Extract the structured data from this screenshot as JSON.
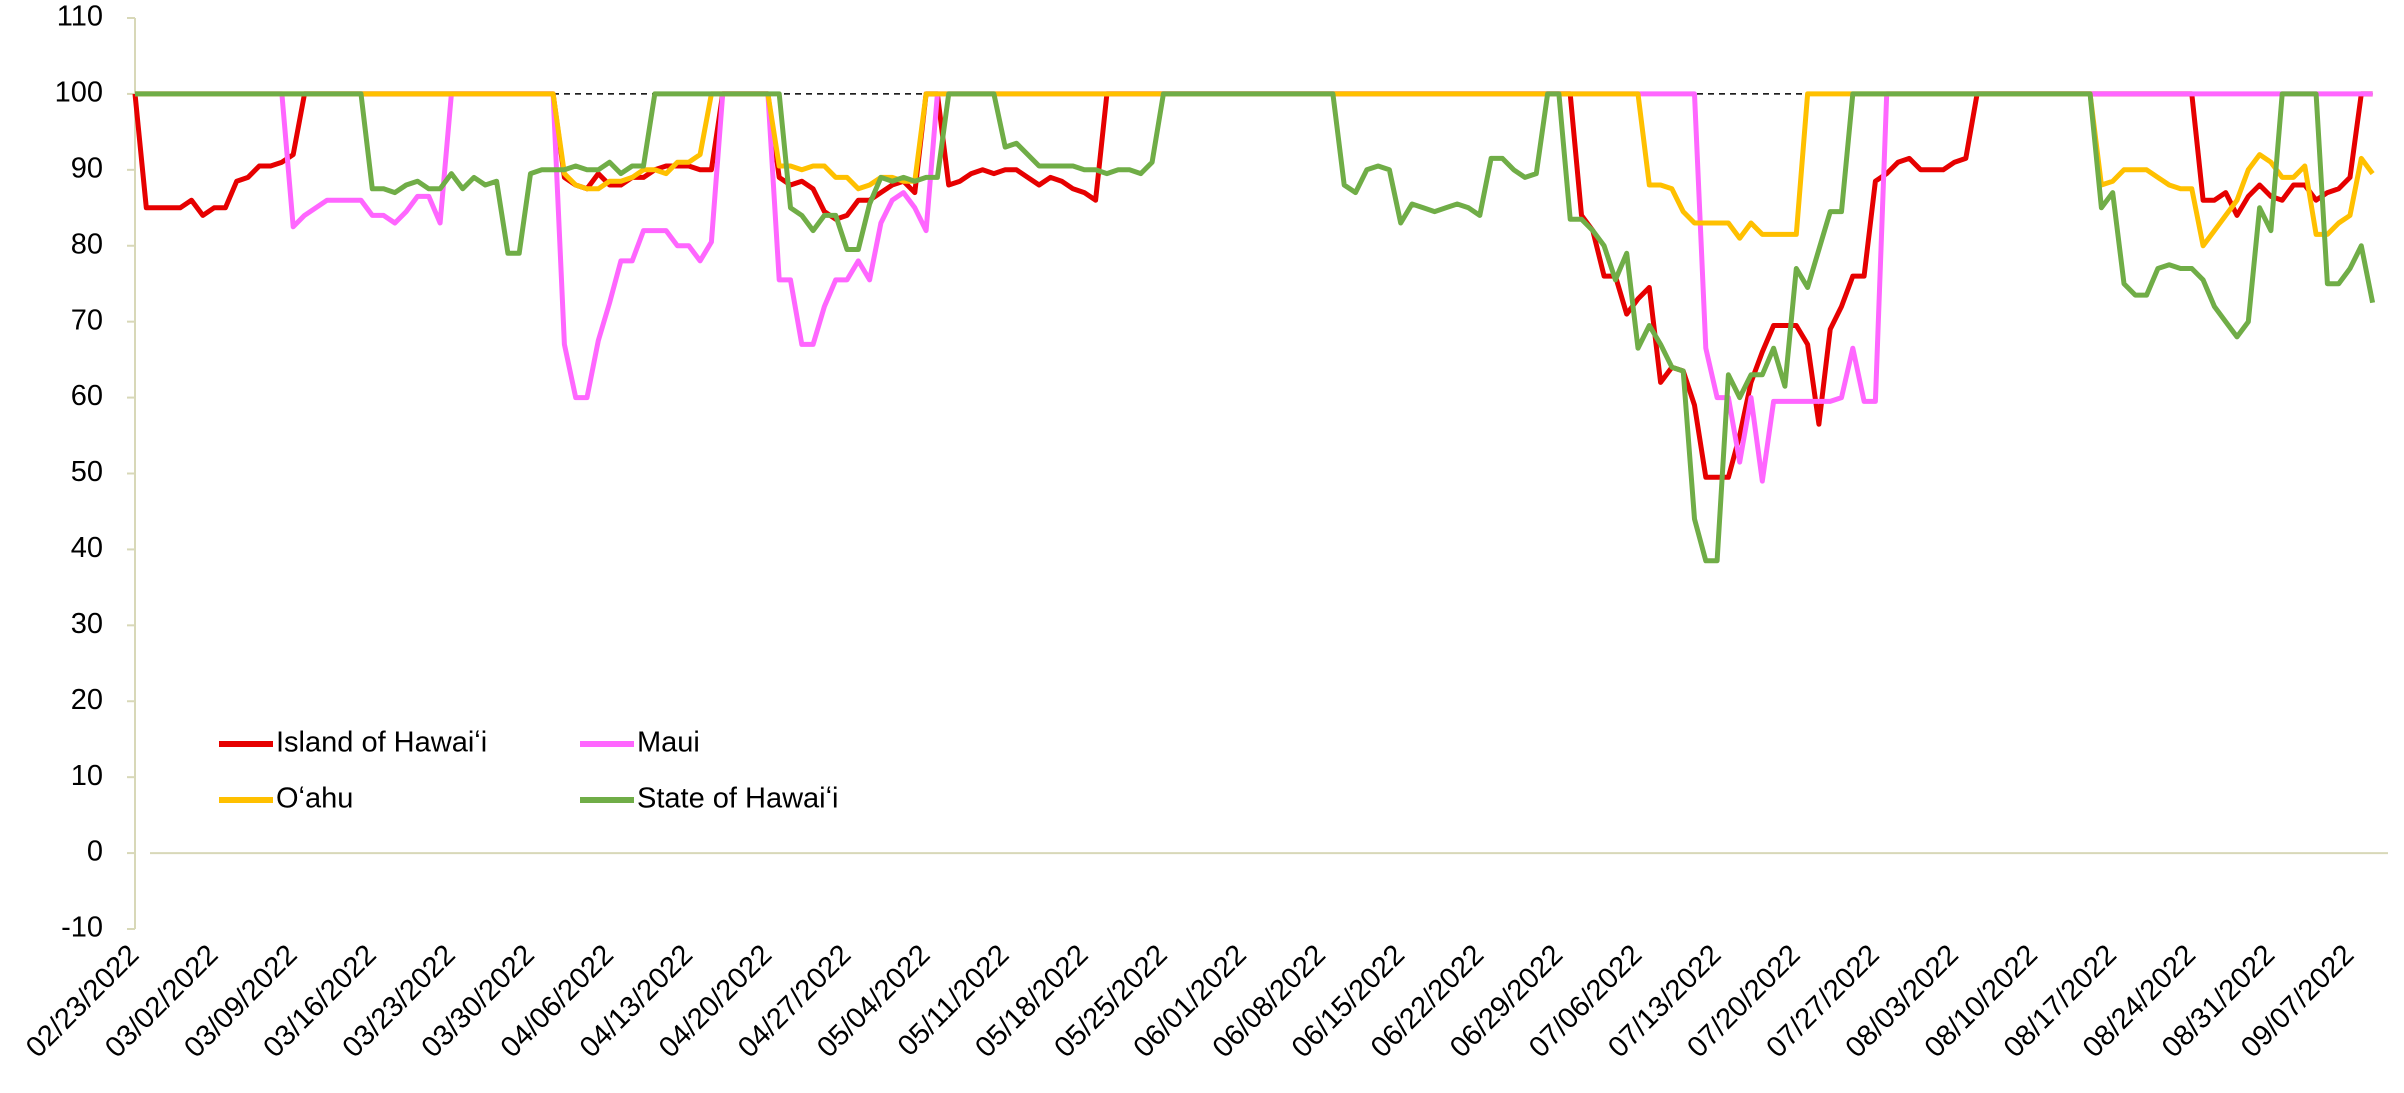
{
  "chart_data": {
    "type": "line",
    "categories": [
      "02/23/2022",
      null,
      null,
      null,
      null,
      null,
      null,
      "03/02/2022",
      null,
      null,
      null,
      null,
      null,
      null,
      "03/09/2022",
      null,
      null,
      null,
      null,
      null,
      null,
      "03/16/2022",
      null,
      null,
      null,
      null,
      null,
      null,
      "03/23/2022",
      null,
      null,
      null,
      null,
      null,
      null,
      "03/30/2022",
      null,
      null,
      null,
      null,
      null,
      null,
      "04/06/2022",
      null,
      null,
      null,
      null,
      null,
      null,
      "04/13/2022",
      null,
      null,
      null,
      null,
      null,
      null,
      "04/20/2022",
      null,
      null,
      null,
      null,
      null,
      null,
      "04/27/2022",
      null,
      null,
      null,
      null,
      null,
      null,
      "05/04/2022",
      null,
      null,
      null,
      null,
      null,
      null,
      "05/11/2022",
      null,
      null,
      null,
      null,
      null,
      null,
      "05/18/2022",
      null,
      null,
      null,
      null,
      null,
      null,
      "05/25/2022",
      null,
      null,
      null,
      null,
      null,
      null,
      "06/01/2022",
      null,
      null,
      null,
      null,
      null,
      null,
      "06/08/2022",
      null,
      null,
      null,
      null,
      null,
      null,
      "06/15/2022",
      null,
      null,
      null,
      null,
      null,
      null,
      "06/22/2022",
      null,
      null,
      null,
      null,
      null,
      null,
      "06/29/2022",
      null,
      null,
      null,
      null,
      null,
      null,
      "07/06/2022",
      null,
      null,
      null,
      null,
      null,
      null,
      "07/13/2022",
      null,
      null,
      null,
      null,
      null,
      null,
      "07/20/2022",
      null,
      null,
      null,
      null,
      null,
      null,
      "07/27/2022",
      null,
      null,
      null,
      null,
      null,
      null,
      "08/03/2022",
      null,
      null,
      null,
      null,
      null,
      null,
      "08/10/2022",
      null,
      null,
      null,
      null,
      null,
      null,
      "08/17/2022",
      null,
      null,
      null,
      null,
      null,
      null,
      "08/24/2022",
      null,
      null,
      null,
      null,
      null,
      null,
      "08/31/2022",
      null,
      null,
      null,
      null,
      null,
      null,
      "09/07/2022",
      null,
      null
    ],
    "series": [
      {
        "name": "Island of Hawaiʻi",
        "color": "#e60000",
        "values": [
          100,
          85,
          85,
          85,
          85,
          86,
          84,
          85,
          85,
          88.5,
          89,
          90.5,
          90.5,
          91,
          92,
          100,
          100,
          100,
          100,
          100,
          100,
          100,
          100,
          100,
          100,
          100,
          100,
          100,
          100,
          100,
          100,
          100,
          100,
          100,
          100,
          100,
          100,
          100,
          89,
          88,
          87.5,
          89.5,
          88,
          88,
          89,
          89,
          90,
          90.5,
          90.5,
          90.5,
          90,
          90,
          100,
          100,
          100,
          100,
          100,
          89,
          88,
          88.5,
          87.5,
          84.5,
          83.5,
          84,
          86,
          86,
          87,
          88,
          88.5,
          87,
          100,
          100,
          88,
          88.5,
          89.5,
          90,
          89.5,
          90,
          90,
          89,
          88,
          89,
          88.5,
          87.5,
          87,
          86,
          100,
          100,
          100,
          100,
          100,
          100,
          100,
          100,
          100,
          100,
          100,
          100,
          100,
          100,
          100,
          100,
          100,
          100,
          100,
          100,
          100,
          100,
          100,
          100,
          100,
          100,
          100,
          100,
          100,
          100,
          100,
          100,
          100,
          100,
          100,
          100,
          100,
          100,
          100,
          100,
          100,
          100,
          84,
          82,
          76,
          76,
          71,
          73,
          74.5,
          62,
          64,
          63.5,
          59,
          49.5,
          49.5,
          49.5,
          55,
          62,
          66,
          69.5,
          69.5,
          69.5,
          67,
          56.5,
          69,
          72,
          76,
          76,
          88.5,
          89.5,
          91,
          91.5,
          90,
          90,
          90,
          91,
          91.5,
          100,
          100,
          100,
          100,
          100,
          100,
          100,
          100,
          100,
          100,
          100,
          100,
          100,
          100,
          100,
          100,
          100,
          100,
          100,
          100,
          86,
          86,
          87,
          84,
          86.5,
          88,
          86.5,
          86,
          88,
          88,
          86,
          87,
          87.5,
          89,
          100,
          100
        ]
      },
      {
        "name": "Maui",
        "color": "#ff66ff",
        "values": [
          100,
          100,
          100,
          100,
          100,
          100,
          100,
          100,
          100,
          100,
          100,
          100,
          100,
          100,
          82.5,
          84,
          85,
          86,
          86,
          86,
          86,
          84,
          84,
          83,
          84.5,
          86.5,
          86.5,
          83,
          100,
          100,
          100,
          100,
          100,
          100,
          100,
          100,
          100,
          100,
          67,
          60,
          60,
          67.5,
          72.5,
          78,
          78,
          82,
          82,
          82,
          80,
          80,
          78,
          80.5,
          100,
          100,
          100,
          100,
          100,
          75.5,
          75.5,
          67,
          67,
          72,
          75.5,
          75.5,
          78,
          75.5,
          83,
          86,
          87,
          85,
          82,
          100,
          100,
          100,
          100,
          100,
          100,
          100,
          100,
          100,
          100,
          100,
          100,
          100,
          100,
          100,
          100,
          100,
          100,
          100,
          100,
          100,
          100,
          100,
          100,
          100,
          100,
          100,
          100,
          100,
          100,
          100,
          100,
          100,
          100,
          100,
          100,
          100,
          100,
          100,
          100,
          100,
          100,
          100,
          100,
          100,
          100,
          100,
          100,
          100,
          100,
          100,
          100,
          100,
          100,
          100,
          100,
          100,
          100,
          100,
          100,
          100,
          100,
          100,
          100,
          100,
          100,
          100,
          100,
          66.5,
          60,
          60,
          51.5,
          60,
          49,
          59.5,
          59.5,
          59.5,
          59.5,
          59.5,
          59.5,
          60,
          66.5,
          59.5,
          59.5,
          100,
          100,
          100,
          100,
          100,
          100,
          100,
          100,
          100,
          100,
          100,
          100,
          100,
          100,
          100,
          100,
          100,
          100,
          100,
          100,
          100,
          100,
          100,
          100,
          100,
          100,
          100,
          100,
          100,
          100,
          100,
          100,
          100,
          100,
          100,
          100,
          100,
          100,
          100,
          100,
          100,
          100,
          100,
          100
        ]
      },
      {
        "name": "Oʻahu",
        "color": "#ffc000",
        "values": [
          100,
          100,
          100,
          100,
          100,
          100,
          100,
          100,
          100,
          100,
          100,
          100,
          100,
          100,
          100,
          100,
          100,
          100,
          100,
          100,
          100,
          100,
          100,
          100,
          100,
          100,
          100,
          100,
          100,
          100,
          100,
          100,
          100,
          100,
          100,
          100,
          100,
          100,
          89.5,
          88,
          87.5,
          87.5,
          88.5,
          88.5,
          89,
          90,
          90,
          89.5,
          91,
          91,
          92,
          100,
          100,
          100,
          100,
          100,
          100,
          90.5,
          90.5,
          90,
          90.5,
          90.5,
          89,
          89,
          87.5,
          88,
          89,
          89,
          88.5,
          88.5,
          100,
          100,
          100,
          100,
          100,
          100,
          100,
          100,
          100,
          100,
          100,
          100,
          100,
          100,
          100,
          100,
          100,
          100,
          100,
          100,
          100,
          100,
          100,
          100,
          100,
          100,
          100,
          100,
          100,
          100,
          100,
          100,
          100,
          100,
          100,
          100,
          100,
          100,
          100,
          100,
          100,
          100,
          100,
          100,
          100,
          100,
          100,
          100,
          100,
          100,
          100,
          100,
          100,
          100,
          100,
          100,
          100,
          100,
          100,
          100,
          100,
          100,
          100,
          100,
          88,
          88,
          87.5,
          84.5,
          83,
          83,
          83,
          83,
          81,
          83,
          81.5,
          81.5,
          81.5,
          81.5,
          100,
          100,
          100,
          100,
          100,
          100,
          100,
          100,
          100,
          100,
          100,
          100,
          100,
          100,
          100,
          100,
          100,
          100,
          100,
          100,
          100,
          100,
          100,
          100,
          100,
          100,
          88,
          88.5,
          90,
          90,
          90,
          89,
          88,
          87.5,
          87.5,
          80,
          82,
          84,
          86,
          90,
          92,
          91,
          89,
          89,
          90.5,
          81.5,
          81.5,
          83,
          84,
          91.5,
          89.5
        ]
      },
      {
        "name": "State of Hawaiʻi",
        "color": "#70ad47",
        "values": [
          100,
          100,
          100,
          100,
          100,
          100,
          100,
          100,
          100,
          100,
          100,
          100,
          100,
          100,
          100,
          100,
          100,
          100,
          100,
          100,
          100,
          87.5,
          87.5,
          87,
          88,
          88.5,
          87.5,
          87.5,
          89.5,
          87.5,
          89,
          88,
          88.5,
          79,
          79,
          89.5,
          90,
          90,
          90,
          90.5,
          90,
          90,
          91,
          89.5,
          90.5,
          90.5,
          100,
          100,
          100,
          100,
          100,
          100,
          100,
          100,
          100,
          100,
          100,
          100,
          85,
          84,
          82,
          84,
          84,
          79.5,
          79.5,
          85.5,
          89,
          88.5,
          89,
          88.5,
          89,
          89,
          100,
          100,
          100,
          100,
          100,
          93,
          93.5,
          92,
          90.5,
          90.5,
          90.5,
          90.5,
          90,
          90,
          89.5,
          90,
          90,
          89.5,
          91,
          100,
          100,
          100,
          100,
          100,
          100,
          100,
          100,
          100,
          100,
          100,
          100,
          100,
          100,
          100,
          100,
          88,
          87,
          90,
          90.5,
          90,
          83,
          85.5,
          85,
          84.5,
          85,
          85.5,
          85,
          84,
          91.5,
          91.5,
          90,
          89,
          89.5,
          100,
          100,
          83.5,
          83.5,
          82,
          80,
          75.5,
          79,
          66.5,
          69.5,
          67,
          64,
          63.5,
          44,
          38.5,
          38.5,
          63,
          60,
          63,
          63,
          66.5,
          61.5,
          77,
          74.5,
          79.5,
          84.5,
          84.5,
          100,
          100,
          100,
          100,
          100,
          100,
          100,
          100,
          100,
          100,
          100,
          100,
          100,
          100,
          100,
          100,
          100,
          100,
          100,
          100,
          100,
          100,
          85,
          87,
          75,
          73.5,
          73.5,
          77,
          77.5,
          77,
          77,
          75.5,
          72,
          70,
          68,
          70,
          85,
          82,
          100,
          100,
          100,
          100,
          75,
          75,
          77,
          80,
          72.5
        ]
      }
    ],
    "ylim": [
      -10,
      110
    ],
    "yticks": [
      -10,
      0,
      10,
      20,
      30,
      40,
      50,
      60,
      70,
      80,
      90,
      100,
      110
    ],
    "reference_line": 100,
    "grid": false,
    "legend_position": "lower left"
  }
}
